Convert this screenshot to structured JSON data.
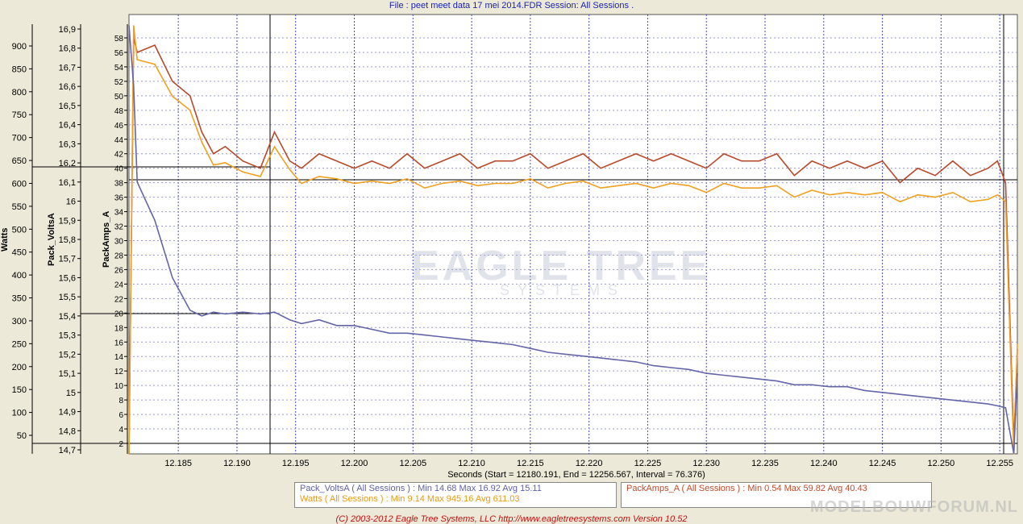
{
  "header": {
    "title": "File : peet meet data 17 mei 2014.FDR    Session: All Sessions ."
  },
  "brand": {
    "name": "EAGLE TREE",
    "sub": "SYSTEMS"
  },
  "legend": {
    "volts": "Pack_VoltsA ( All Sessions ) : Min 14.68   Max 16.92   Avg 15.11",
    "watts": "Watts ( All Sessions ) : Min 9.14   Max 945.16   Avg 611.03",
    "amps": "PackAmps_A ( All Sessions ) : Min 0.54   Max 59.82   Avg 40.43"
  },
  "xcaption": "Seconds (Start = 12180.191,  End = 12256.567,  Interval =  76.376)",
  "footer": "(C) 2003-2012 Eagle Tree Systems, LLC  http://www.eagletreesystems.com  Version 10.52",
  "watermark": "MODELBOUWFORUM.NL",
  "colors": {
    "volts": "#6464a8",
    "watts": "#f0a020",
    "amps": "#b84a2a",
    "plotbg": "#ffffff",
    "grid": "#4a4ad0"
  },
  "chart_data": {
    "type": "line",
    "xlabel": "Seconds",
    "xlim": [
      12.1808,
      12.2565
    ],
    "x_ticks": [
      "12.185",
      "12.190",
      "12.195",
      "12.200",
      "12.205",
      "12.210",
      "12.215",
      "12.220",
      "12.225",
      "12.230",
      "12.235",
      "12.240",
      "12.245",
      "12.250",
      "12.255"
    ],
    "axes": {
      "watts": {
        "label": "Watts",
        "ticks": [
          "900",
          "850",
          "800",
          "750",
          "700",
          "650",
          "600",
          "550",
          "500",
          "450",
          "400",
          "350",
          "300",
          "250",
          "200",
          "150",
          "100",
          "50"
        ]
      },
      "volts": {
        "label": "Pack_VoltsA",
        "ticks": [
          "16,9",
          "16,8",
          "16,7",
          "16,6",
          "16,5",
          "16,4",
          "16,3",
          "16,2",
          "16,1",
          "16",
          "15,9",
          "15,8",
          "15,7",
          "15,6",
          "15,5",
          "15,4",
          "15,3",
          "15,2",
          "15,1",
          "15",
          "14,9",
          "14,8",
          "14,7"
        ]
      },
      "amps": {
        "label": "PackAmps_A",
        "ticks": [
          "58",
          "56",
          "54",
          "52",
          "50",
          "48",
          "46",
          "44",
          "42",
          "40",
          "38",
          "36",
          "34",
          "32",
          "30",
          "28",
          "26",
          "24",
          "22",
          "20",
          "18",
          "16",
          "14",
          "12",
          "10",
          "8",
          "6",
          "4",
          "2"
        ]
      }
    },
    "series": [
      {
        "name": "PackAmps_A",
        "axis": "amps",
        "x": [
          12.1808,
          12.1812,
          12.1815,
          12.183,
          12.1845,
          12.186,
          12.187,
          12.188,
          12.189,
          12.1905,
          12.192,
          12.1932,
          12.1945,
          12.1955,
          12.197,
          12.1985,
          12.2,
          12.2015,
          12.203,
          12.2045,
          12.206,
          12.2075,
          12.209,
          12.2105,
          12.212,
          12.2135,
          12.215,
          12.2165,
          12.218,
          12.2195,
          12.221,
          12.2225,
          12.224,
          12.2255,
          12.227,
          12.2285,
          12.23,
          12.2315,
          12.233,
          12.2345,
          12.236,
          12.2375,
          12.239,
          12.2405,
          12.242,
          12.2435,
          12.245,
          12.2465,
          12.248,
          12.2495,
          12.251,
          12.2525,
          12.254,
          12.2548,
          12.2555,
          12.2562,
          12.2565
        ],
        "y": [
          0.5,
          58,
          56,
          57,
          52,
          50,
          45,
          42,
          43,
          41,
          40,
          45,
          41,
          40,
          42,
          41,
          40,
          41,
          40,
          42,
          40,
          41,
          42,
          40,
          41,
          41,
          42,
          40,
          41,
          42,
          40,
          41,
          42,
          41,
          42,
          41,
          40,
          42,
          41,
          41,
          42,
          39,
          41,
          40,
          41,
          40,
          41,
          38,
          40,
          39,
          41,
          39,
          40,
          41,
          38,
          2,
          15
        ]
      },
      {
        "name": "Watts",
        "axis": "watts",
        "x": [
          12.1808,
          12.1812,
          12.1815,
          12.183,
          12.1845,
          12.186,
          12.187,
          12.188,
          12.189,
          12.1905,
          12.192,
          12.1932,
          12.1945,
          12.1955,
          12.197,
          12.1985,
          12.2,
          12.2015,
          12.203,
          12.2045,
          12.206,
          12.2075,
          12.209,
          12.2105,
          12.212,
          12.2135,
          12.215,
          12.2165,
          12.218,
          12.2195,
          12.221,
          12.2225,
          12.224,
          12.2255,
          12.227,
          12.2285,
          12.23,
          12.2315,
          12.233,
          12.2345,
          12.236,
          12.2375,
          12.239,
          12.2405,
          12.242,
          12.2435,
          12.245,
          12.2465,
          12.248,
          12.2495,
          12.251,
          12.2525,
          12.254,
          12.2548,
          12.2555,
          12.2562,
          12.2565
        ],
        "y": [
          9,
          945,
          870,
          860,
          790,
          760,
          690,
          640,
          645,
          625,
          615,
          680,
          630,
          600,
          615,
          610,
          600,
          605,
          600,
          610,
          590,
          600,
          605,
          595,
          600,
          600,
          610,
          590,
          600,
          605,
          590,
          595,
          600,
          590,
          600,
          595,
          580,
          600,
          590,
          590,
          595,
          570,
          585,
          575,
          580,
          575,
          580,
          560,
          575,
          570,
          580,
          560,
          565,
          575,
          560,
          9,
          250
        ]
      },
      {
        "name": "Pack_VoltsA",
        "axis": "volts",
        "x": [
          12.1808,
          12.1812,
          12.1815,
          12.183,
          12.1845,
          12.186,
          12.187,
          12.188,
          12.189,
          12.1905,
          12.192,
          12.1932,
          12.1945,
          12.1955,
          12.197,
          12.1985,
          12.2,
          12.2015,
          12.203,
          12.2045,
          12.206,
          12.2075,
          12.209,
          12.2105,
          12.212,
          12.2135,
          12.215,
          12.2165,
          12.218,
          12.2195,
          12.221,
          12.2225,
          12.224,
          12.2255,
          12.227,
          12.2285,
          12.23,
          12.2315,
          12.233,
          12.2345,
          12.236,
          12.2375,
          12.239,
          12.2405,
          12.242,
          12.2435,
          12.245,
          12.2465,
          12.248,
          12.2495,
          12.251,
          12.2525,
          12.254,
          12.2548,
          12.2555,
          12.2562,
          12.2565
        ],
        "y": [
          16.92,
          16.6,
          16.1,
          15.9,
          15.6,
          15.43,
          15.4,
          15.42,
          15.41,
          15.42,
          15.41,
          15.42,
          15.38,
          15.36,
          15.38,
          15.35,
          15.35,
          15.33,
          15.31,
          15.31,
          15.3,
          15.29,
          15.28,
          15.27,
          15.26,
          15.25,
          15.23,
          15.21,
          15.2,
          15.19,
          15.18,
          15.17,
          15.16,
          15.14,
          15.13,
          15.12,
          15.1,
          15.09,
          15.08,
          15.07,
          15.06,
          15.04,
          15.04,
          15.03,
          15.03,
          15.01,
          15,
          14.99,
          14.98,
          14.97,
          14.96,
          14.95,
          14.94,
          14.93,
          14.92,
          14.68,
          15.1
        ]
      }
    ]
  }
}
